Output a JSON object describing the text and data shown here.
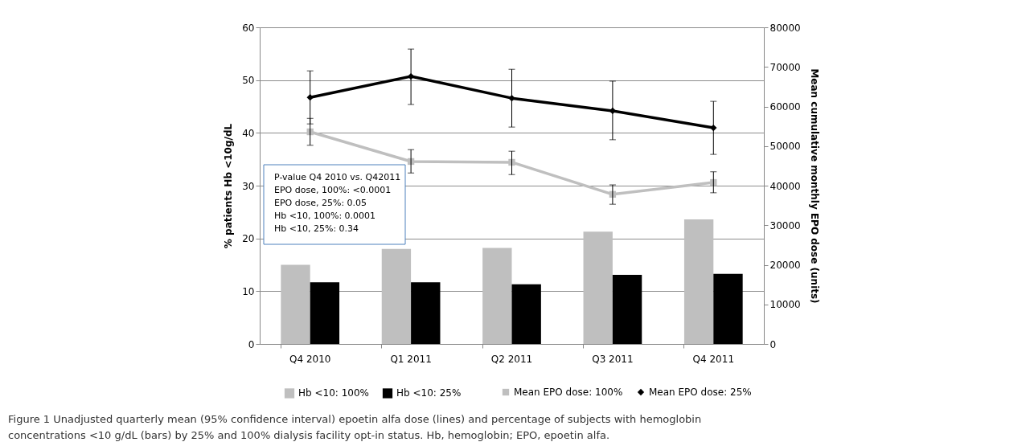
{
  "chart_data": {
    "type": "bar",
    "categories": [
      "Q4 2010",
      "Q1 2011",
      "Q2 2011",
      "Q3 2011",
      "Q4 2011"
    ],
    "ylabel": "% patients Hb <10g/dL",
    "y2label": "Mean cumulative monthly EPO dose (units)",
    "ylim": [
      0,
      60
    ],
    "yticks": [
      0,
      10,
      20,
      30,
      40,
      50,
      60
    ],
    "y2lim": [
      0,
      80000
    ],
    "y2ticks": [
      0,
      10000,
      20000,
      30000,
      40000,
      50000,
      60000,
      70000,
      80000
    ],
    "series": [
      {
        "name": "Hb <10: 100%",
        "color": "#bfbfbf",
        "values": [
          15.0,
          18.0,
          18.2,
          21.3,
          23.6
        ]
      },
      {
        "name": "Hb <10: 25%",
        "color": "#000000",
        "values": [
          11.7,
          11.7,
          11.3,
          13.1,
          13.3
        ]
      },
      {
        "name": "Mean EPO dose: 100%",
        "type": "line",
        "axis": "y2",
        "marker": "square",
        "color": "#bfbfbf",
        "values": [
          53600,
          46100,
          45900,
          37800,
          40800
        ],
        "errors": [
          [
            50200,
            57000
          ],
          [
            43200,
            49100
          ],
          [
            42800,
            48700
          ],
          [
            35300,
            40200
          ],
          [
            38200,
            43500
          ]
        ]
      },
      {
        "name": "Mean EPO dose: 25%",
        "type": "line",
        "axis": "y2",
        "marker": "diamond",
        "color": "#000000",
        "values": [
          62300,
          67600,
          62100,
          58900,
          54600
        ],
        "errors": [
          [
            55600,
            69000
          ],
          [
            60500,
            74500
          ],
          [
            54800,
            69400
          ],
          [
            51600,
            66400
          ],
          [
            47900,
            61300
          ]
        ]
      }
    ],
    "grid": "y",
    "legend": "bottom",
    "annotations": [
      "P-value Q4 2010 vs. Q42011\nEPO dose, 100%: <0.0001\nEPO dose, 25%: 0.05\nHb <10, 100%: 0.0001\nHb <10, 25%: 0.34",
      "Figure 1 Unadjusted quarterly mean (95% confidence interval) epoetin alfa dose (lines) and percentage of subjects with hemoglobin concentrations <10 g/dL (bars) by 25% and 100% dialysis facility opt-in status. Hb, hemoglobin; EPO, epoetin alfa."
    ]
  }
}
